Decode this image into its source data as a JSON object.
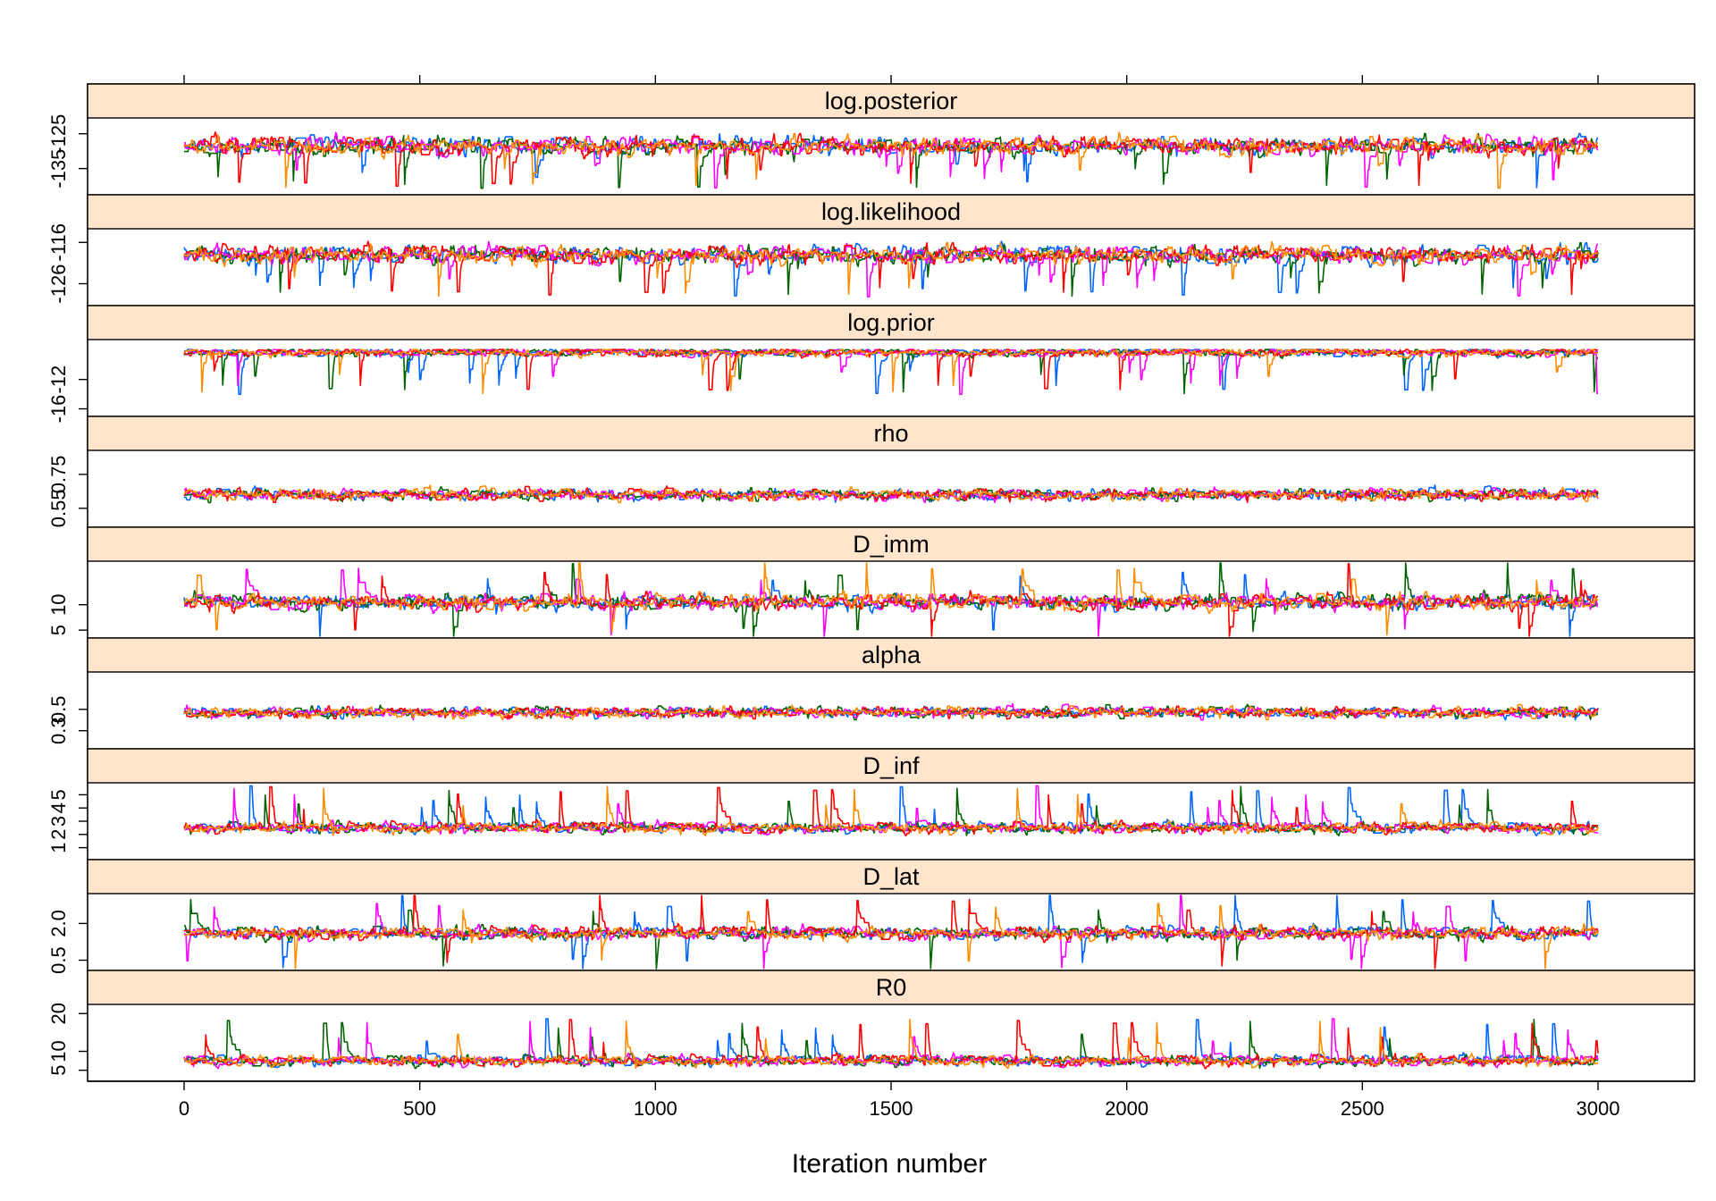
{
  "chart_data": {
    "type": "line",
    "xlabel": "Iteration number",
    "xlim": [
      0,
      3000
    ],
    "x_ticks": [
      "0",
      "500",
      "1000",
      "1500",
      "2000",
      "2500",
      "3000"
    ],
    "n_iterations": 3000,
    "chain_colors": [
      "#0066ff",
      "#006400",
      "#ff00ff",
      "#ff0000",
      "#ff8c00"
    ],
    "panels": [
      {
        "name": "log.posterior",
        "ylim": [
          -141,
          -122
        ],
        "ticks": [
          "-135",
          "-125"
        ],
        "center": -128.5,
        "spread": 2.2,
        "spike": "down",
        "ceiling": -124
      },
      {
        "name": "log.likelihood",
        "ylim": [
          -130,
          -114
        ],
        "ticks": [
          "-126",
          "-116"
        ],
        "center": -119,
        "spread": 1.8,
        "spike": "down",
        "ceiling": -115
      },
      {
        "name": "log.prior",
        "ylim": [
          -16.3,
          -7.3
        ],
        "ticks": [
          "-16",
          "-12"
        ],
        "center": -8.3,
        "spread": 0.5,
        "spike": "down",
        "ceiling": -7.9
      },
      {
        "name": "rho",
        "ylim": [
          0.47,
          0.86
        ],
        "ticks": [
          "0.55",
          "0.75"
        ],
        "center": 0.63,
        "spread": 0.03,
        "spike": "none"
      },
      {
        "name": "D_imm",
        "ylim": [
          4.5,
          17.5
        ],
        "ticks": [
          "5",
          "10"
        ],
        "center": 10.5,
        "spread": 1.3,
        "spike": "both"
      },
      {
        "name": "alpha",
        "ylim": [
          0.18,
          0.8
        ],
        "ticks": [
          "0.3",
          "0.5"
        ],
        "center": 0.47,
        "spread": 0.045,
        "spike": "none"
      },
      {
        "name": "D_inf",
        "ylim": [
          0.5,
          5.5
        ],
        "ticks": [
          "1",
          "2",
          "3",
          "4",
          "5"
        ],
        "center": 2.5,
        "spread": 0.35,
        "spike": "up"
      },
      {
        "name": "D_lat",
        "ylim": [
          0.3,
          3.0
        ],
        "ticks": [
          "0.5",
          "2.0"
        ],
        "center": 1.6,
        "spread": 0.22,
        "spike": "both"
      },
      {
        "name": "R0",
        "ylim": [
          3.5,
          21
        ],
        "ticks": [
          "5",
          "10",
          "20"
        ],
        "center": 7.5,
        "spread": 1.2,
        "spike": "up"
      }
    ]
  }
}
